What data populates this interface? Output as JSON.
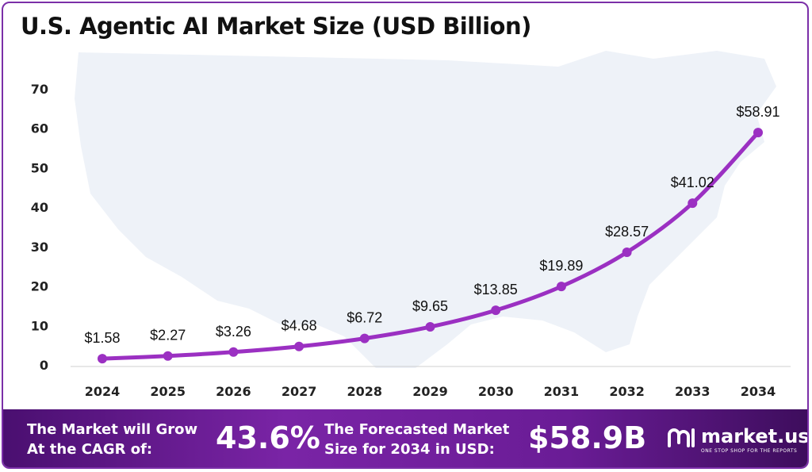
{
  "chart_data": {
    "type": "line",
    "title": "U.S. Agentic AI Market Size (USD Billion)",
    "categories": [
      "2024",
      "2025",
      "2026",
      "2027",
      "2028",
      "2029",
      "2030",
      "2031",
      "2032",
      "2033",
      "2034"
    ],
    "values": [
      1.58,
      2.27,
      3.26,
      4.68,
      6.72,
      9.65,
      13.85,
      19.89,
      28.57,
      41.02,
      58.91
    ],
    "data_labels": [
      "$1.58",
      "$2.27",
      "$3.26",
      "$4.68",
      "$6.72",
      "$9.65",
      "$13.85",
      "$19.89",
      "$28.57",
      "$41.02",
      "$58.91"
    ],
    "yticks": [
      0,
      10,
      20,
      30,
      40,
      50,
      60,
      70
    ],
    "ylim": [
      0,
      70
    ],
    "grid": false,
    "line_color": "#9b30c2"
  },
  "footer": {
    "grow_label": "The Market will Grow At the CAGR of:",
    "cagr": "43.6%",
    "forecast_label": "The Forecasted Market Size for 2034 in USD:",
    "forecast_value": "$58.9B"
  },
  "logo": {
    "name": "market.us",
    "tagline": "ONE STOP SHOP FOR THE REPORTS"
  }
}
